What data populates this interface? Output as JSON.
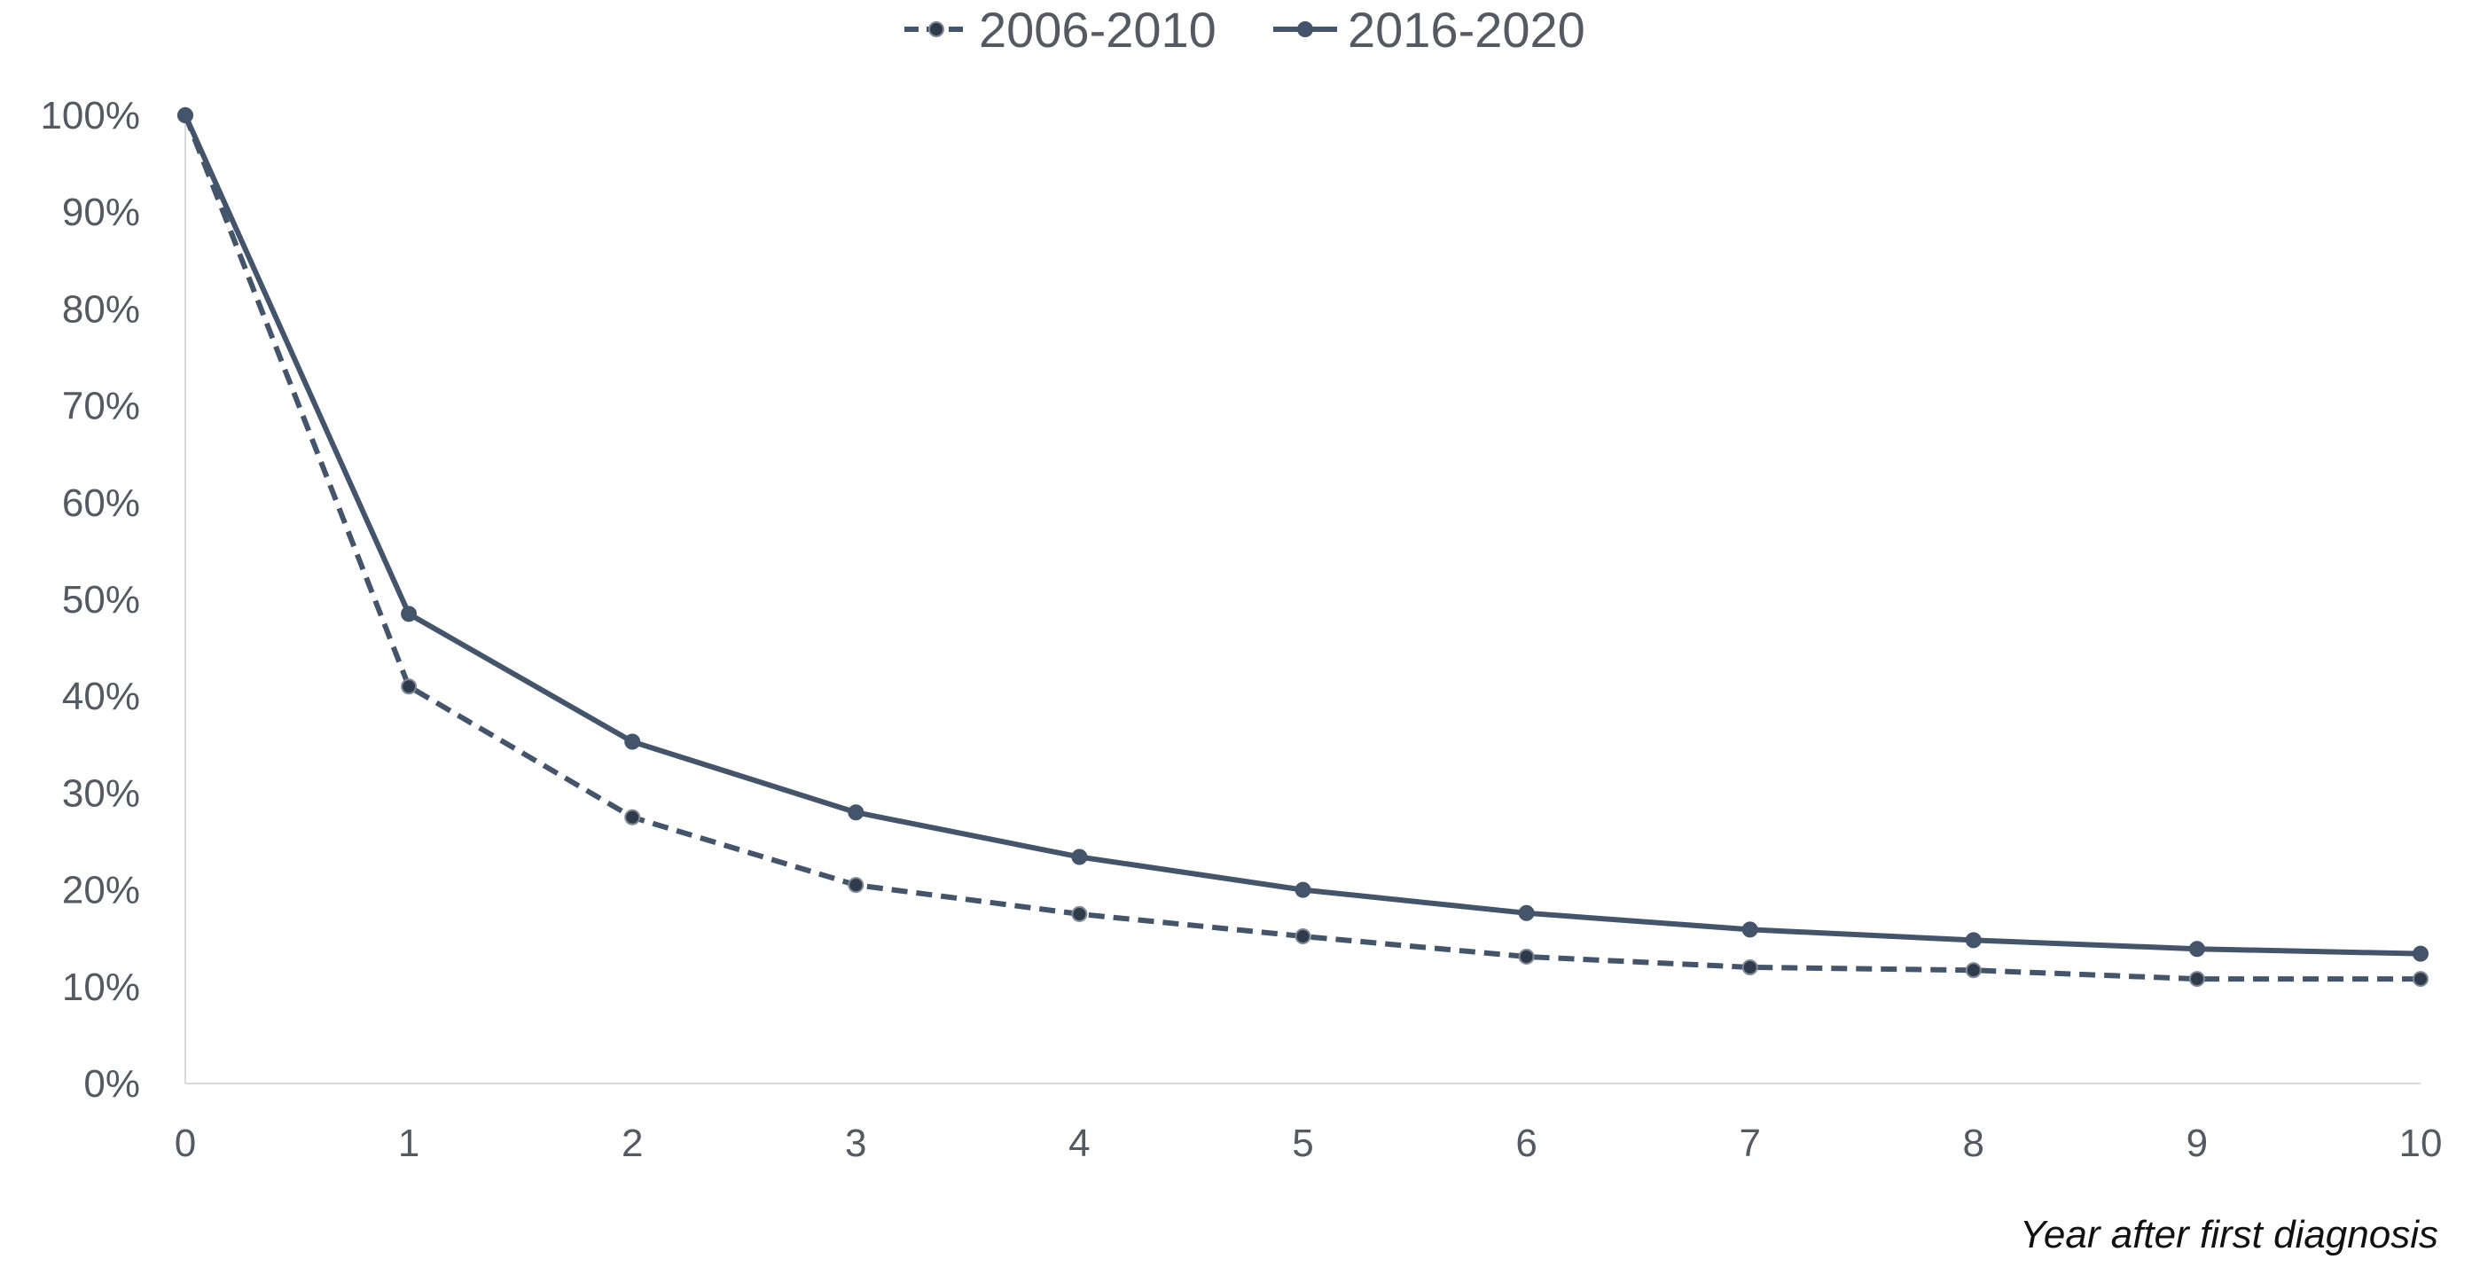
{
  "chart_data": {
    "type": "line",
    "title": "",
    "xlabel": "Year after first diagnosis",
    "ylabel": "",
    "x": [
      0,
      1,
      2,
      3,
      4,
      5,
      6,
      7,
      8,
      9,
      10
    ],
    "x_tick_labels": [
      "0",
      "1",
      "2",
      "3",
      "4",
      "5",
      "6",
      "7",
      "8",
      "9",
      "10"
    ],
    "y_tick_labels": [
      "0%",
      "10%",
      "20%",
      "30%",
      "40%",
      "50%",
      "60%",
      "70%",
      "80%",
      "90%",
      "100%"
    ],
    "ylim": [
      0,
      100
    ],
    "xlim": [
      0,
      10
    ],
    "grid": false,
    "legend_position": "top-center",
    "series": [
      {
        "name": "2006-2010",
        "style": "dashed",
        "color": "#44546a",
        "values": [
          100,
          41,
          27.5,
          20.5,
          17.5,
          15.2,
          13.1,
          12,
          11.7,
          10.8,
          10.8
        ]
      },
      {
        "name": "2016-2020",
        "style": "solid",
        "color": "#44546a",
        "values": [
          100,
          48.5,
          35.3,
          28,
          23.4,
          20,
          17.6,
          15.9,
          14.8,
          13.9,
          13.4
        ]
      }
    ]
  }
}
